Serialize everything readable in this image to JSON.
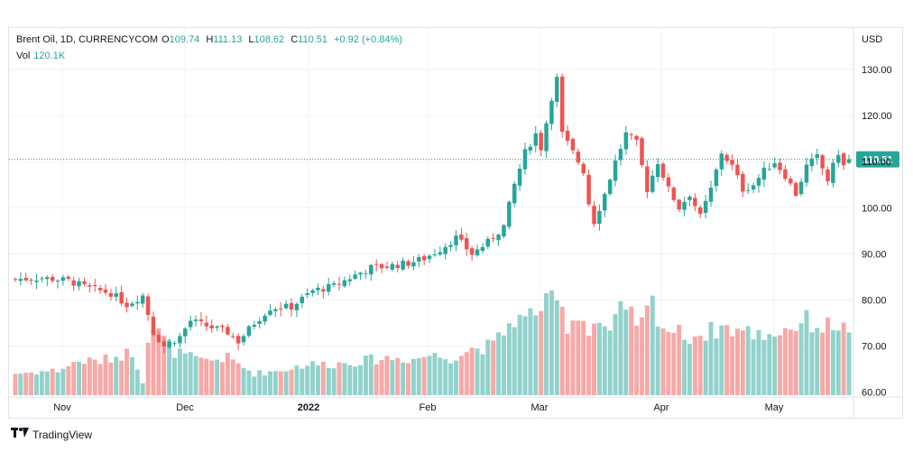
{
  "legend": {
    "symbol": "Brent Oil, 1D, CURRENCYCOM",
    "o_label": "O",
    "o_val": "109.74",
    "h_label": "H",
    "h_val": "111.13",
    "l_label": "L",
    "l_val": "108.62",
    "c_label": "C",
    "c_val": "110.51",
    "change": "+0.92 (+0.84%)",
    "vol_label": "Vol",
    "vol_val": "120.1K"
  },
  "axis_currency": "USD",
  "last_price_label": "110.51",
  "brand": "TradingView",
  "colors": {
    "up": "#26a69a",
    "down": "#ef5350",
    "up_vol": "#92d2cc",
    "down_vol": "#f7a9a7",
    "grid": "#f0f3fa",
    "axis_text": "#131722"
  },
  "chart_data": {
    "type": "candlestick",
    "ylim": [
      59,
      133
    ],
    "y_ticks": [
      "130.00",
      "120.00",
      "110.00",
      "100.00",
      "90.00",
      "80.00",
      "70.00",
      "60.00"
    ],
    "x_ticks": [
      "Nov",
      "Dec",
      "2022",
      "Feb",
      "Mar",
      "Apr",
      "May"
    ],
    "last_price": 110.51,
    "close_anchors": [
      [
        0,
        84.5
      ],
      [
        5,
        84.8
      ],
      [
        10,
        84.2
      ],
      [
        14,
        82.5
      ],
      [
        18,
        81.5
      ],
      [
        21,
        79
      ],
      [
        24,
        81
      ],
      [
        26,
        73
      ],
      [
        28,
        70
      ],
      [
        31,
        72
      ],
      [
        33,
        75.5
      ],
      [
        37,
        74
      ],
      [
        40,
        73
      ],
      [
        42,
        71
      ],
      [
        45,
        75
      ],
      [
        48,
        78.3
      ],
      [
        52,
        78.5
      ],
      [
        56,
        82
      ],
      [
        60,
        83
      ],
      [
        64,
        85.4
      ],
      [
        67,
        87
      ],
      [
        70,
        87.3
      ],
      [
        74,
        88
      ],
      [
        77,
        89
      ],
      [
        80,
        91
      ],
      [
        83,
        93.5
      ],
      [
        86,
        90
      ],
      [
        89,
        92.5
      ],
      [
        92,
        96
      ],
      [
        94,
        105
      ],
      [
        96,
        112
      ],
      [
        98,
        116
      ],
      [
        99,
        113
      ],
      [
        101,
        124
      ],
      [
        102,
        128
      ],
      [
        103,
        116
      ],
      [
        105,
        112
      ],
      [
        107,
        108
      ],
      [
        108,
        101
      ],
      [
        109,
        97
      ],
      [
        111,
        103
      ],
      [
        113,
        110
      ],
      [
        115,
        116
      ],
      [
        117,
        114
      ],
      [
        119,
        104
      ],
      [
        121,
        110
      ],
      [
        123,
        104
      ],
      [
        125,
        100
      ],
      [
        127,
        103
      ],
      [
        129,
        98
      ],
      [
        131,
        104
      ],
      [
        133,
        112
      ],
      [
        135,
        109
      ],
      [
        137,
        104
      ],
      [
        139,
        105
      ],
      [
        141,
        108
      ],
      [
        143,
        110
      ],
      [
        145,
        107
      ],
      [
        147,
        103
      ],
      [
        149,
        109
      ],
      [
        151,
        111
      ],
      [
        153,
        106
      ],
      [
        155,
        112
      ],
      [
        156,
        109
      ],
      [
        157,
        110.51
      ]
    ],
    "volume_anchors": [
      [
        0,
        3.5
      ],
      [
        8,
        4.0
      ],
      [
        12,
        5.5
      ],
      [
        16,
        5.5
      ],
      [
        20,
        6.5
      ],
      [
        22,
        7.0
      ],
      [
        24,
        2.2
      ],
      [
        25,
        9.5
      ],
      [
        26,
        11.0
      ],
      [
        28,
        9.0
      ],
      [
        30,
        7.0
      ],
      [
        35,
        5.5
      ],
      [
        40,
        6.0
      ],
      [
        45,
        3.5
      ],
      [
        50,
        4.0
      ],
      [
        55,
        5.0
      ],
      [
        60,
        5.0
      ],
      [
        65,
        5.5
      ],
      [
        70,
        6.0
      ],
      [
        75,
        5.8
      ],
      [
        78,
        6.5
      ],
      [
        82,
        6.0
      ],
      [
        86,
        7.5
      ],
      [
        90,
        8.0
      ],
      [
        94,
        12.5
      ],
      [
        96,
        12.0
      ],
      [
        98,
        14.0
      ],
      [
        100,
        14.5
      ],
      [
        102,
        15.0
      ],
      [
        104,
        11.5
      ],
      [
        106,
        13.0
      ],
      [
        108,
        11.0
      ],
      [
        110,
        12.0
      ],
      [
        112,
        10.0
      ],
      [
        114,
        13.5
      ],
      [
        116,
        12.5
      ],
      [
        118,
        11.5
      ],
      [
        120,
        15.0
      ],
      [
        122,
        11.0
      ],
      [
        125,
        10.0
      ],
      [
        127,
        9.5
      ],
      [
        130,
        10.0
      ],
      [
        133,
        11.0
      ],
      [
        136,
        10.5
      ],
      [
        140,
        9.8
      ],
      [
        143,
        10.0
      ],
      [
        146,
        11.0
      ],
      [
        149,
        12.0
      ],
      [
        152,
        11.0
      ],
      [
        155,
        11.5
      ],
      [
        157,
        9.8
      ]
    ],
    "volume_max": 16
  }
}
